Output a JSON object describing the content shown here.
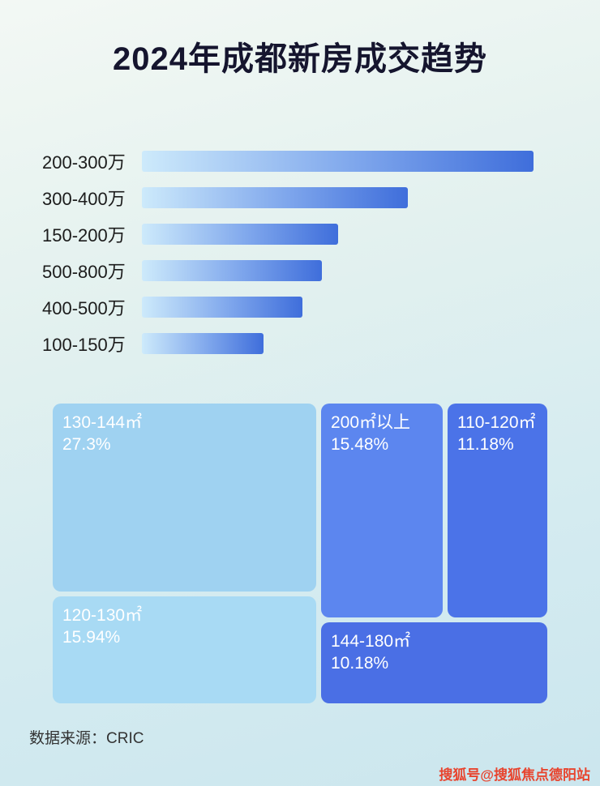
{
  "page": {
    "title": "2024年成都新房成交趋势",
    "source_label": "数据来源：CRIC",
    "watermark": "搜狐号@搜狐焦点德阳站"
  },
  "colors": {
    "bar_gradient_start": "#cdeafb",
    "bar_gradient_end": "#3f6edb",
    "treemap_light_1": "#9fd2f1",
    "treemap_light_2": "#a8daf4",
    "treemap_mid_blue": "#5c86ef",
    "treemap_dark_blue_1": "#4b73e8",
    "treemap_dark_blue_2": "#4a6fe5",
    "title_color": "#15152e",
    "watermark_color": "#e8442e"
  },
  "chart_data": [
    {
      "type": "bar",
      "orientation": "horizontal",
      "title": "2024年成都新房成交趋势",
      "categories": [
        "200-300万",
        "300-400万",
        "150-200万",
        "500-800万",
        "400-500万",
        "100-150万"
      ],
      "values": [
        100,
        68,
        50,
        46,
        41,
        31
      ],
      "value_unit": "relative bar length, % of longest bar (no numeric axis labels shown in image)",
      "xlabel": "",
      "ylabel": "",
      "grid": false,
      "legend": false
    },
    {
      "type": "treemap",
      "title": "",
      "items": [
        {
          "label": "130-144㎡",
          "value": 27.3,
          "display": "27.3%"
        },
        {
          "label": "120-130㎡",
          "value": 15.94,
          "display": "15.94%"
        },
        {
          "label": "200㎡以上",
          "value": 15.48,
          "display": "15.48%"
        },
        {
          "label": "110-120㎡",
          "value": 11.18,
          "display": "11.18%"
        },
        {
          "label": "144-180㎡",
          "value": 10.18,
          "display": "10.18%"
        }
      ],
      "value_unit": "percent share"
    }
  ]
}
